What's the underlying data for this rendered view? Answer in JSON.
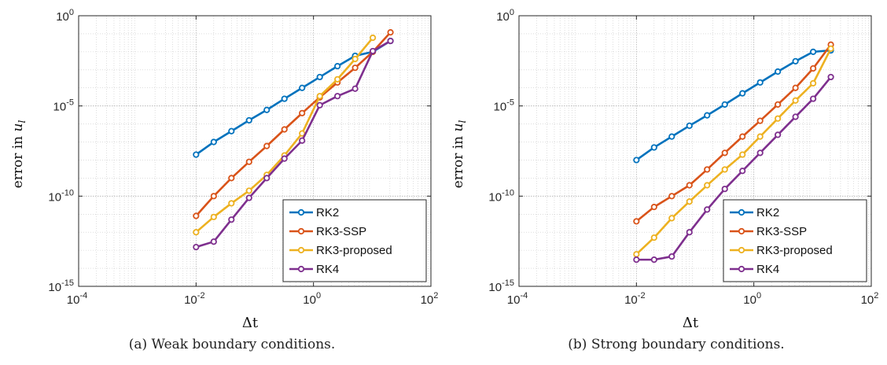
{
  "chart_data": [
    {
      "type": "line",
      "x_scale": "log",
      "y_scale": "log",
      "xlim": [
        0.0001,
        100
      ],
      "ylim": [
        1e-15,
        1
      ],
      "xlabel": "Δt",
      "ylabel_text": "error in ",
      "ylabel_var": "u",
      "ylabel_sub": "l",
      "grid": true,
      "legend_position": "bottom-right",
      "x_ticks": [
        {
          "base": "10",
          "exp": "-4"
        },
        {
          "base": "10",
          "exp": "-2"
        },
        {
          "base": "10",
          "exp": "0"
        },
        {
          "base": "10",
          "exp": "2"
        }
      ],
      "y_ticks": [
        {
          "base": "10",
          "exp": "0"
        },
        {
          "base": "10",
          "exp": "-5"
        },
        {
          "base": "10",
          "exp": "-10"
        },
        {
          "base": "10",
          "exp": "-15"
        }
      ],
      "caption": "(a) Weak boundary conditions.",
      "series": [
        {
          "name": "RK2",
          "color": "#0072BD",
          "x": [
            0.01,
            0.02,
            0.04,
            0.08,
            0.16,
            0.32,
            0.64,
            1.28,
            2.56,
            5.12,
            10.24,
            20.48
          ],
          "y": [
            2e-08,
            1e-07,
            4e-07,
            1.6e-06,
            6e-06,
            2.5e-05,
            0.0001,
            0.0004,
            0.0016,
            0.006,
            0.01,
            0.04
          ]
        },
        {
          "name": "RK3-SSP",
          "color": "#D95319",
          "x": [
            0.01,
            0.02,
            0.04,
            0.08,
            0.16,
            0.32,
            0.64,
            1.28,
            2.56,
            5.12,
            10.24,
            20.48
          ],
          "y": [
            8e-12,
            1e-10,
            1e-09,
            8e-09,
            6e-08,
            5e-07,
            4e-06,
            3e-05,
            0.0002,
            0.0013,
            0.01,
            0.12
          ]
        },
        {
          "name": "RK3-proposed",
          "color": "#EDB120",
          "x": [
            0.01,
            0.02,
            0.04,
            0.08,
            0.16,
            0.32,
            0.64,
            1.28,
            2.56,
            5.12,
            10.24
          ],
          "y": [
            1e-12,
            7e-12,
            4e-11,
            2e-10,
            1.5e-09,
            1.8e-08,
            3e-07,
            3.5e-05,
            0.0003,
            0.004,
            0.06
          ]
        },
        {
          "name": "RK4",
          "color": "#7E2F8E",
          "x": [
            0.01,
            0.02,
            0.04,
            0.08,
            0.16,
            0.32,
            0.64,
            1.28,
            2.56,
            5.12,
            10.24,
            20.48
          ],
          "y": [
            1.5e-13,
            3e-13,
            5e-12,
            8e-11,
            1e-09,
            1.2e-08,
            1.2e-07,
            1.1e-05,
            3.5e-05,
            9e-05,
            0.011,
            0.04
          ]
        }
      ]
    },
    {
      "type": "line",
      "x_scale": "log",
      "y_scale": "log",
      "xlim": [
        0.0001,
        100
      ],
      "ylim": [
        1e-15,
        1
      ],
      "xlabel": "Δt",
      "ylabel_text": "error in ",
      "ylabel_var": "u",
      "ylabel_sub": "l",
      "grid": true,
      "legend_position": "bottom-right",
      "x_ticks": [
        {
          "base": "10",
          "exp": "-4"
        },
        {
          "base": "10",
          "exp": "-2"
        },
        {
          "base": "10",
          "exp": "0"
        },
        {
          "base": "10",
          "exp": "2"
        }
      ],
      "y_ticks": [
        {
          "base": "10",
          "exp": "0"
        },
        {
          "base": "10",
          "exp": "-5"
        },
        {
          "base": "10",
          "exp": "-10"
        },
        {
          "base": "10",
          "exp": "-15"
        }
      ],
      "caption": "(b) Strong boundary conditions.",
      "series": [
        {
          "name": "RK2",
          "color": "#0072BD",
          "x": [
            0.01,
            0.02,
            0.04,
            0.08,
            0.16,
            0.32,
            0.64,
            1.28,
            2.56,
            5.12,
            10.24,
            20.48
          ],
          "y": [
            1e-08,
            5e-08,
            2e-07,
            8e-07,
            3e-06,
            1.2e-05,
            5e-05,
            0.0002,
            0.0008,
            0.003,
            0.01,
            0.012
          ]
        },
        {
          "name": "RK3-SSP",
          "color": "#D95319",
          "x": [
            0.01,
            0.02,
            0.04,
            0.08,
            0.16,
            0.32,
            0.64,
            1.28,
            2.56,
            5.12,
            10.24,
            20.48
          ],
          "y": [
            4e-12,
            2.5e-11,
            1e-10,
            4e-10,
            3e-09,
            2.5e-08,
            2e-07,
            1.5e-06,
            1.2e-05,
            0.0001,
            0.0012,
            0.025
          ]
        },
        {
          "name": "RK3-proposed",
          "color": "#EDB120",
          "x": [
            0.01,
            0.02,
            0.04,
            0.08,
            0.16,
            0.32,
            0.64,
            1.28,
            2.56,
            5.12,
            10.24,
            20.48
          ],
          "y": [
            6e-14,
            5e-13,
            6e-12,
            5e-11,
            4e-10,
            3e-09,
            2e-08,
            2e-07,
            2e-06,
            2e-05,
            0.00018,
            0.015
          ]
        },
        {
          "name": "RK4",
          "color": "#7E2F8E",
          "x": [
            0.01,
            0.02,
            0.04,
            0.08,
            0.16,
            0.32,
            0.64,
            1.28,
            2.56,
            5.12,
            10.24,
            20.48
          ],
          "y": [
            3e-14,
            3e-14,
            4.5e-14,
            1e-12,
            1.8e-11,
            2.5e-10,
            2.5e-09,
            2.5e-08,
            2.5e-07,
            2.5e-06,
            2.5e-05,
            0.0004
          ]
        }
      ]
    }
  ]
}
